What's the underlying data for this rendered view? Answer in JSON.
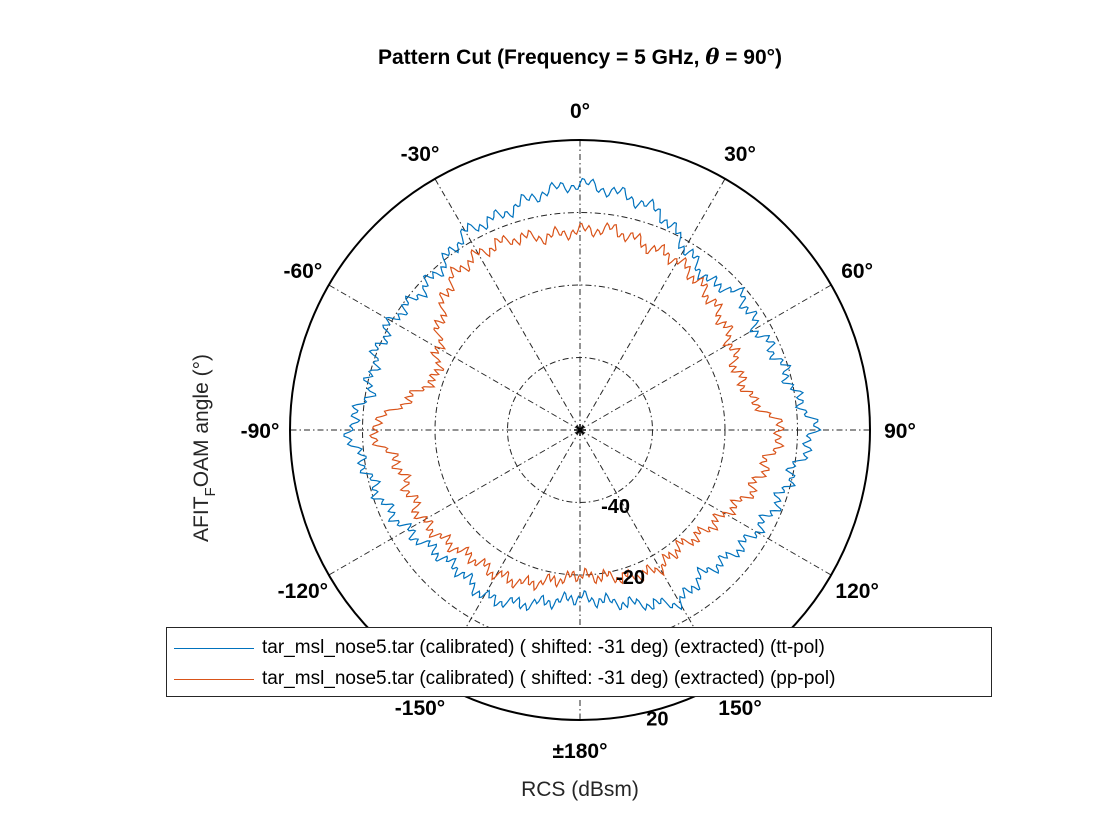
{
  "chart_data": {
    "type": "polar-line",
    "title_parts": [
      "Pattern Cut (Frequency = 5 GHz, ",
      "θ",
      " = 90°)"
    ],
    "ylabel_parts": [
      "AFIT",
      "F",
      "OAM angle (°)"
    ],
    "xlabel": "RCS (dBsm)",
    "theta_zero": "top",
    "theta_direction": "clockwise",
    "angle_ticks": [
      0,
      30,
      60,
      90,
      120,
      150,
      180,
      -150,
      -120,
      -90,
      -60,
      -30
    ],
    "angle_tick_labels": [
      "0°",
      "30°",
      "60°",
      "90°",
      "120°",
      "150°",
      "±180°",
      "-150°",
      "-120°",
      "-90°",
      "-60°",
      "-30°"
    ],
    "r_limits": [
      -60,
      20
    ],
    "r_ticks": [
      -40,
      -20,
      0,
      20
    ],
    "r_tick_labels": [
      "-40",
      "-20",
      "",
      "20"
    ],
    "grid": true,
    "series": [
      {
        "name": "tar_msl_nose5.tar (calibrated) ( shifted: -31 deg) (extracted) (tt-pol)",
        "color": "#0072BD",
        "angles_deg": [
          -180,
          -170,
          -160,
          -150,
          -140,
          -130,
          -120,
          -110,
          -100,
          -90,
          -80,
          -70,
          -60,
          -50,
          -40,
          -30,
          -20,
          -10,
          0,
          10,
          20,
          30,
          40,
          50,
          60,
          70,
          80,
          90,
          100,
          110,
          120,
          130,
          140,
          150,
          160,
          170,
          180
        ],
        "values_dbsm": [
          -14,
          -12,
          -9,
          -7,
          -9,
          -8,
          -5,
          -2,
          0,
          4,
          -1,
          0,
          0,
          -2,
          -1,
          3,
          3,
          6,
          8,
          6,
          4,
          -2,
          -6,
          -2,
          -4,
          -2,
          0,
          5,
          0,
          -2,
          -4,
          -6,
          -8,
          -5,
          -9,
          -12,
          -14
        ]
      },
      {
        "name": "tar_msl_nose5.tar (calibrated) ( shifted: -31 deg) (extracted) (pp-pol)",
        "color": "#D95319",
        "angles_deg": [
          -180,
          -170,
          -160,
          -150,
          -140,
          -130,
          -120,
          -110,
          -100,
          -90,
          -80,
          -70,
          -60,
          -50,
          -40,
          -30,
          -20,
          -10,
          0,
          10,
          20,
          30,
          40,
          50,
          60,
          70,
          80,
          90,
          100,
          110,
          120,
          130,
          140,
          150,
          160,
          170,
          180
        ],
        "values_dbsm": [
          -20,
          -18,
          -15,
          -14,
          -14,
          -12,
          -10,
          -10,
          -9,
          -2,
          -12,
          -18,
          -15,
          -10,
          -5,
          -4,
          -4,
          -6,
          -5,
          -4,
          -6,
          -6,
          -8,
          -10,
          -12,
          -14,
          -12,
          -4,
          -8,
          -10,
          -14,
          -16,
          -18,
          -16,
          -17,
          -19,
          -20
        ]
      }
    ]
  }
}
